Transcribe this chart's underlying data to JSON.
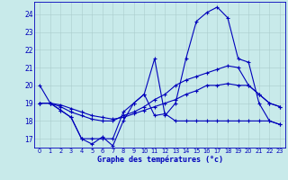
{
  "title": "Graphe des températures (°c)",
  "background_color": "#c8eaea",
  "grid_color": "#aacccc",
  "line_color": "#0000bb",
  "x_labels": [
    "0",
    "1",
    "2",
    "3",
    "4",
    "5",
    "6",
    "7",
    "8",
    "9",
    "10",
    "11",
    "12",
    "13",
    "14",
    "15",
    "16",
    "17",
    "18",
    "19",
    "20",
    "21",
    "22",
    "23"
  ],
  "y_ticks": [
    17,
    18,
    19,
    20,
    21,
    22,
    23,
    24
  ],
  "ylim": [
    16.5,
    24.7
  ],
  "xlim": [
    -0.5,
    23.5
  ],
  "series1": [
    20.0,
    19.0,
    18.6,
    18.2,
    17.0,
    16.7,
    17.1,
    16.6,
    18.0,
    19.0,
    19.5,
    18.3,
    18.4,
    18.0,
    18.0,
    18.0,
    18.0,
    18.0,
    18.0,
    18.0,
    18.0,
    18.0,
    18.0,
    17.8
  ],
  "series2": [
    19.0,
    19.0,
    18.6,
    18.2,
    17.0,
    17.0,
    17.0,
    17.0,
    18.5,
    19.0,
    19.5,
    21.5,
    18.3,
    19.0,
    21.5,
    23.6,
    24.1,
    24.4,
    23.8,
    21.5,
    21.3,
    19.0,
    18.0,
    17.8
  ],
  "series3": [
    19.0,
    19.0,
    18.8,
    18.5,
    18.3,
    18.1,
    18.0,
    18.0,
    18.3,
    18.5,
    18.8,
    19.2,
    19.5,
    20.0,
    20.3,
    20.5,
    20.7,
    20.9,
    21.1,
    21.0,
    20.0,
    19.5,
    19.0,
    18.8
  ],
  "series4": [
    19.0,
    19.0,
    18.9,
    18.7,
    18.5,
    18.3,
    18.2,
    18.1,
    18.2,
    18.4,
    18.6,
    18.8,
    19.0,
    19.2,
    19.5,
    19.7,
    20.0,
    20.0,
    20.1,
    20.0,
    20.0,
    19.5,
    19.0,
    18.8
  ]
}
